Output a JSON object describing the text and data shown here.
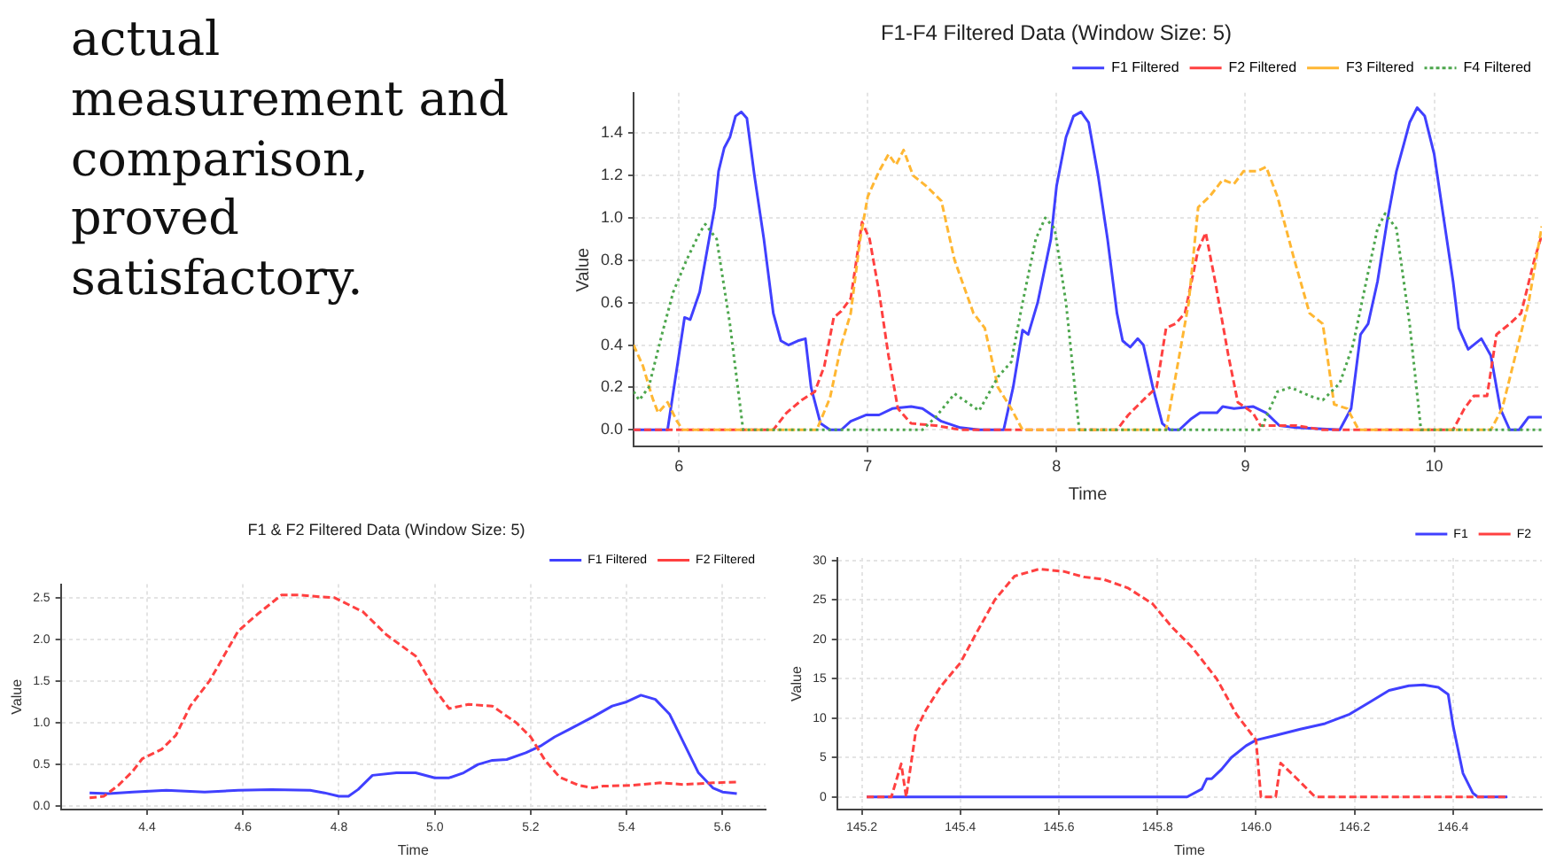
{
  "chart_data": [
    {
      "type": "other",
      "annotations": [
        "actual measurement and comparison, proved satisfactory."
      ]
    },
    {
      "type": "line",
      "title": "F1-F4 Filtered Data (Window Size: 5)",
      "xlabel": "Time",
      "ylabel": "Value",
      "xlim": [
        5.76,
        10.57
      ],
      "ylim": [
        -0.08,
        1.59
      ],
      "xticks": [
        6,
        7,
        8,
        9,
        10
      ],
      "yticks": [
        {
          "value": 0,
          "label": "0.0"
        },
        {
          "value": 0.2,
          "label": "0.2"
        },
        {
          "value": 0.4,
          "label": "0.4"
        },
        {
          "value": 0.6,
          "label": "0.6"
        },
        {
          "value": 0.8,
          "label": "0.8"
        },
        {
          "value": 1,
          "label": "1.0"
        },
        {
          "value": 1.2,
          "label": "1.2"
        },
        {
          "value": 1.4,
          "label": "1.4"
        }
      ],
      "grid": true,
      "legend": "top right",
      "series": [
        {
          "name": "F1 Filtered",
          "color": "#4040ff",
          "line_style": "solid",
          "x": [
            5.76,
            5.94,
            6.03,
            6.06,
            6.11,
            6.16,
            6.19,
            6.21,
            6.24,
            6.27,
            6.3,
            6.33,
            6.36,
            6.4,
            6.45,
            6.5,
            6.54,
            6.58,
            6.63,
            6.67,
            6.7,
            6.75,
            6.8,
            6.86,
            6.91,
            6.99,
            7.06,
            7.13,
            7.23,
            7.29,
            7.39,
            7.49,
            7.59,
            7.72,
            7.77,
            7.82,
            7.85,
            7.9,
            7.97,
            8,
            8.05,
            8.09,
            8.13,
            8.17,
            8.22,
            8.27,
            8.32,
            8.35,
            8.39,
            8.43,
            8.46,
            8.51,
            8.56,
            8.6,
            8.65,
            8.71,
            8.76,
            8.85,
            8.88,
            8.94,
            9.04,
            9.11,
            9.18,
            9.27,
            9.5,
            9.56,
            9.61,
            9.65,
            9.7,
            9.75,
            9.8,
            9.84,
            9.87,
            9.91,
            9.95,
            10,
            10.05,
            10.1,
            10.13,
            10.18,
            10.25,
            10.3,
            10.35,
            10.4,
            10.45,
            10.5,
            10.57
          ],
          "values": [
            0,
            0,
            0.53,
            0.52,
            0.65,
            0.9,
            1.05,
            1.22,
            1.33,
            1.38,
            1.48,
            1.5,
            1.47,
            1.2,
            0.9,
            0.55,
            0.42,
            0.4,
            0.42,
            0.43,
            0.2,
            0.03,
            0,
            0,
            0.04,
            0.07,
            0.07,
            0.1,
            0.11,
            0.1,
            0.04,
            0.01,
            0,
            0,
            0.2,
            0.47,
            0.45,
            0.6,
            0.9,
            1.15,
            1.38,
            1.48,
            1.5,
            1.45,
            1.2,
            0.9,
            0.55,
            0.42,
            0.39,
            0.43,
            0.4,
            0.2,
            0.03,
            0,
            0,
            0.05,
            0.08,
            0.08,
            0.11,
            0.1,
            0.11,
            0.08,
            0.02,
            0.01,
            0,
            0.1,
            0.45,
            0.5,
            0.7,
            0.98,
            1.22,
            1.35,
            1.45,
            1.52,
            1.48,
            1.3,
            1,
            0.7,
            0.48,
            0.38,
            0.43,
            0.35,
            0.1,
            0,
            0,
            0.06,
            0.06
          ]
        },
        {
          "name": "F2 Filtered",
          "color": "#ff4040",
          "line_style": "dashed",
          "x": [
            5.76,
            6.5,
            6.57,
            6.65,
            6.72,
            6.77,
            6.82,
            6.86,
            6.91,
            6.97,
            7.01,
            7.06,
            7.11,
            7.16,
            7.23,
            7.36,
            7.49,
            8.32,
            8.38,
            8.47,
            8.53,
            8.58,
            8.63,
            8.68,
            8.75,
            8.79,
            8.84,
            8.91,
            8.96,
            9.04,
            9.08,
            9.27,
            9.41,
            10.1,
            10.16,
            10.21,
            10.28,
            10.33,
            10.4,
            10.46,
            10.53,
            10.57
          ],
          "values": [
            0,
            0,
            0.08,
            0.14,
            0.18,
            0.3,
            0.53,
            0.56,
            0.62,
            0.98,
            0.9,
            0.65,
            0.35,
            0.1,
            0.03,
            0.02,
            0,
            0,
            0.07,
            0.15,
            0.2,
            0.48,
            0.5,
            0.55,
            0.85,
            0.93,
            0.7,
            0.35,
            0.13,
            0.08,
            0.02,
            0.02,
            0,
            0,
            0.1,
            0.16,
            0.16,
            0.45,
            0.5,
            0.55,
            0.8,
            0.92
          ]
        },
        {
          "name": "F3 Filtered",
          "color": "#ffb733",
          "line_style": "dashed",
          "x": [
            5.76,
            5.81,
            5.86,
            5.89,
            5.94,
            5.99,
            6.02,
            6.73,
            6.8,
            6.86,
            6.91,
            6.96,
            7,
            7.06,
            7.11,
            7.15,
            7.19,
            7.24,
            7.31,
            7.39,
            7.46,
            7.56,
            7.62,
            7.69,
            7.76,
            7.82,
            8.58,
            8.7,
            8.75,
            8.81,
            8.88,
            8.94,
            8.99,
            9.06,
            9.11,
            9.17,
            9.26,
            9.34,
            9.41,
            9.47,
            9.54,
            9.6,
            10.3,
            10.36,
            10.43,
            10.5,
            10.57
          ],
          "values": [
            0.4,
            0.3,
            0.15,
            0.08,
            0.13,
            0.04,
            0,
            0,
            0.15,
            0.4,
            0.55,
            0.9,
            1.1,
            1.22,
            1.3,
            1.25,
            1.32,
            1.2,
            1.15,
            1.08,
            0.8,
            0.55,
            0.48,
            0.2,
            0.1,
            0,
            0,
            0.6,
            1.05,
            1.1,
            1.18,
            1.16,
            1.22,
            1.22,
            1.24,
            1.1,
            0.8,
            0.55,
            0.5,
            0.12,
            0.1,
            0,
            0,
            0.1,
            0.35,
            0.6,
            0.96
          ]
        },
        {
          "name": "F4 Filtered",
          "color": "#4da64d",
          "line_style": "dotted",
          "x": [
            5.76,
            5.79,
            5.84,
            5.91,
            5.97,
            6.04,
            6.11,
            6.14,
            6.2,
            6.27,
            6.34,
            7.29,
            7.36,
            7.46,
            7.59,
            7.69,
            7.76,
            7.82,
            7.89,
            7.94,
            7.99,
            8.05,
            8.12,
            9.08,
            9.17,
            9.24,
            9.34,
            9.41,
            9.5,
            9.57,
            9.64,
            9.7,
            9.74,
            9.8,
            9.87,
            9.93,
            10.57
          ],
          "values": [
            0.18,
            0.14,
            0.2,
            0.45,
            0.65,
            0.8,
            0.93,
            0.97,
            0.9,
            0.5,
            0,
            0,
            0.06,
            0.17,
            0.09,
            0.25,
            0.32,
            0.6,
            0.9,
            1,
            0.95,
            0.6,
            0,
            0,
            0.18,
            0.2,
            0.16,
            0.14,
            0.22,
            0.4,
            0.7,
            0.95,
            1.02,
            0.95,
            0.5,
            0,
            0
          ]
        }
      ]
    },
    {
      "type": "line",
      "title": "F1 & F2 Filtered Data (Window Size: 5)",
      "xlabel": "Time",
      "ylabel": "Value",
      "xlim": [
        4.22,
        5.69
      ],
      "ylim": [
        -0.04,
        2.66
      ],
      "xticks": [
        4.4,
        4.6,
        4.8,
        {
          "value": 5,
          "label": "5.0"
        },
        5.2,
        5.4,
        5.6
      ],
      "yticks": [
        {
          "value": 0,
          "label": "0.0"
        },
        {
          "value": 0.5,
          "label": "0.5"
        },
        {
          "value": 1,
          "label": "1.0"
        },
        {
          "value": 1.5,
          "label": "1.5"
        },
        {
          "value": 2,
          "label": "2.0"
        },
        {
          "value": 2.5,
          "label": "2.5"
        }
      ],
      "grid": true,
      "legend": "top right",
      "series": [
        {
          "name": "F1 Filtered",
          "color": "#4040ff",
          "line_style": "solid",
          "x": [
            4.28,
            4.32,
            4.37,
            4.44,
            4.52,
            4.59,
            4.66,
            4.74,
            4.77,
            4.8,
            4.82,
            4.84,
            4.87,
            4.92,
            4.96,
            5,
            5.03,
            5.06,
            5.09,
            5.12,
            5.15,
            5.19,
            5.22,
            5.25,
            5.28,
            5.33,
            5.37,
            5.4,
            5.43,
            5.46,
            5.49,
            5.52,
            5.55,
            5.58,
            5.6,
            5.63
          ],
          "values": [
            0.16,
            0.15,
            0.17,
            0.19,
            0.17,
            0.19,
            0.2,
            0.19,
            0.16,
            0.12,
            0.12,
            0.2,
            0.37,
            0.4,
            0.4,
            0.34,
            0.34,
            0.4,
            0.5,
            0.55,
            0.56,
            0.64,
            0.72,
            0.83,
            0.92,
            1.07,
            1.2,
            1.25,
            1.33,
            1.28,
            1.1,
            0.75,
            0.4,
            0.22,
            0.17,
            0.15
          ]
        },
        {
          "name": "F2 Filtered",
          "color": "#ff4040",
          "line_style": "dashed",
          "x": [
            4.28,
            4.31,
            4.34,
            4.37,
            4.39,
            4.43,
            4.46,
            4.49,
            4.53,
            4.59,
            4.63,
            4.68,
            4.72,
            4.76,
            4.79,
            4.85,
            4.9,
            4.96,
            5,
            5.03,
            5.07,
            5.12,
            5.17,
            5.2,
            5.23,
            5.26,
            5.3,
            5.33,
            5.35,
            5.41,
            5.47,
            5.52,
            5.58,
            5.63
          ],
          "values": [
            0.1,
            0.12,
            0.25,
            0.42,
            0.57,
            0.68,
            0.85,
            1.2,
            1.5,
            2.1,
            2.3,
            2.53,
            2.53,
            2.51,
            2.5,
            2.33,
            2.05,
            1.8,
            1.4,
            1.17,
            1.22,
            1.2,
            1,
            0.83,
            0.55,
            0.35,
            0.25,
            0.22,
            0.24,
            0.25,
            0.28,
            0.26,
            0.28,
            0.29
          ]
        }
      ]
    },
    {
      "type": "line",
      "xlabel": "Time",
      "ylabel": "Value",
      "xlim": [
        145.15,
        146.58
      ],
      "ylim": [
        -1.6,
        30.3
      ],
      "xticks": [
        145.2,
        145.4,
        145.6,
        145.8,
        {
          "value": 146,
          "label": "146.0"
        },
        146.2,
        146.4
      ],
      "yticks": [
        {
          "value": 0,
          "label": "0"
        },
        5,
        10,
        15,
        20,
        25,
        30
      ],
      "grid": true,
      "legend": "top right",
      "series": [
        {
          "name": "F1",
          "color": "#4040ff",
          "line_style": "solid",
          "x": [
            145.21,
            145.86,
            145.89,
            145.9,
            145.91,
            145.93,
            145.95,
            145.98,
            146,
            146.04,
            146.09,
            146.14,
            146.19,
            146.23,
            146.27,
            146.31,
            146.34,
            146.37,
            146.39,
            146.4,
            146.42,
            146.44,
            146.45,
            146.51
          ],
          "values": [
            0,
            0,
            1,
            2.3,
            2.3,
            3.5,
            5,
            6.5,
            7.2,
            7.8,
            8.6,
            9.3,
            10.5,
            12,
            13.5,
            14.1,
            14.2,
            13.9,
            13,
            9,
            3,
            0.5,
            0,
            0
          ]
        },
        {
          "name": "F2",
          "color": "#ff4040",
          "line_style": "dashed",
          "x": [
            145.21,
            145.26,
            145.28,
            145.29,
            145.31,
            145.33,
            145.36,
            145.4,
            145.43,
            145.47,
            145.51,
            145.56,
            145.61,
            145.65,
            145.69,
            145.74,
            145.79,
            145.83,
            145.87,
            145.92,
            145.96,
            146,
            146.01,
            146.04,
            146.05,
            146.08,
            146.12,
            146.51
          ],
          "values": [
            0,
            0,
            4.2,
            0,
            8.5,
            11,
            14,
            17,
            20.5,
            25,
            28,
            28.9,
            28.6,
            27.9,
            27.6,
            26.5,
            24.5,
            21.5,
            19,
            15,
            10.5,
            7.2,
            0,
            0,
            4.3,
            2.5,
            0,
            0
          ]
        }
      ]
    }
  ]
}
